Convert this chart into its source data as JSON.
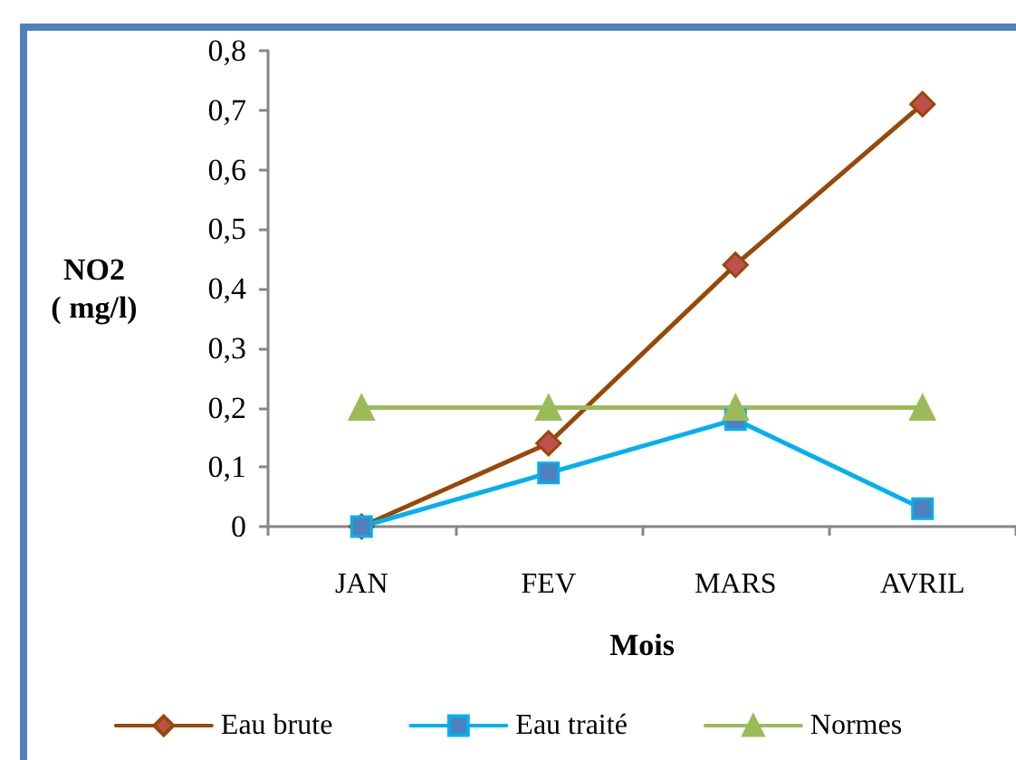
{
  "chart_data": {
    "type": "line",
    "categories": [
      "JAN",
      "FEV",
      "MARS",
      "AVRIL"
    ],
    "xlabel": "Mois",
    "ylabel": "NO2\n( mg/l)",
    "series": [
      {
        "name": "Eau brute",
        "color": "#984807",
        "colors": [
          "#c0504d",
          "#c0504d",
          "#c0504d",
          "#c0504d"
        ],
        "marker": "diamond",
        "values": [
          0,
          0.14,
          0.44,
          0.71
        ]
      },
      {
        "name": "Eau traité",
        "color": "#00b0f0",
        "colors": [
          "#4f81bd",
          "#4f81bd",
          "#4f81bd",
          "#4f81bd"
        ],
        "marker": "square",
        "values": [
          0,
          0.09,
          0.18,
          0.03
        ]
      },
      {
        "name": "Normes",
        "color": "#9bbb59",
        "marker": "triangle",
        "values": [
          0.2,
          0.2,
          0.2,
          0.2
        ]
      }
    ],
    "ylim": [
      0,
      0.8
    ],
    "yticks": [
      0,
      {
        "value": 0.1,
        "label": "0,1"
      },
      {
        "value": 0.2,
        "label": "0,2"
      },
      {
        "value": 0.3,
        "label": "0,3"
      },
      {
        "value": 0.4,
        "label": "0,4"
      },
      {
        "value": 0.5,
        "label": "0,5"
      },
      {
        "value": 0.6,
        "label": "0,6"
      },
      {
        "value": 0.7,
        "label": "0,7"
      },
      {
        "value": 0.8,
        "label": "0,8"
      }
    ],
    "grid": false,
    "legend": "bottom"
  }
}
